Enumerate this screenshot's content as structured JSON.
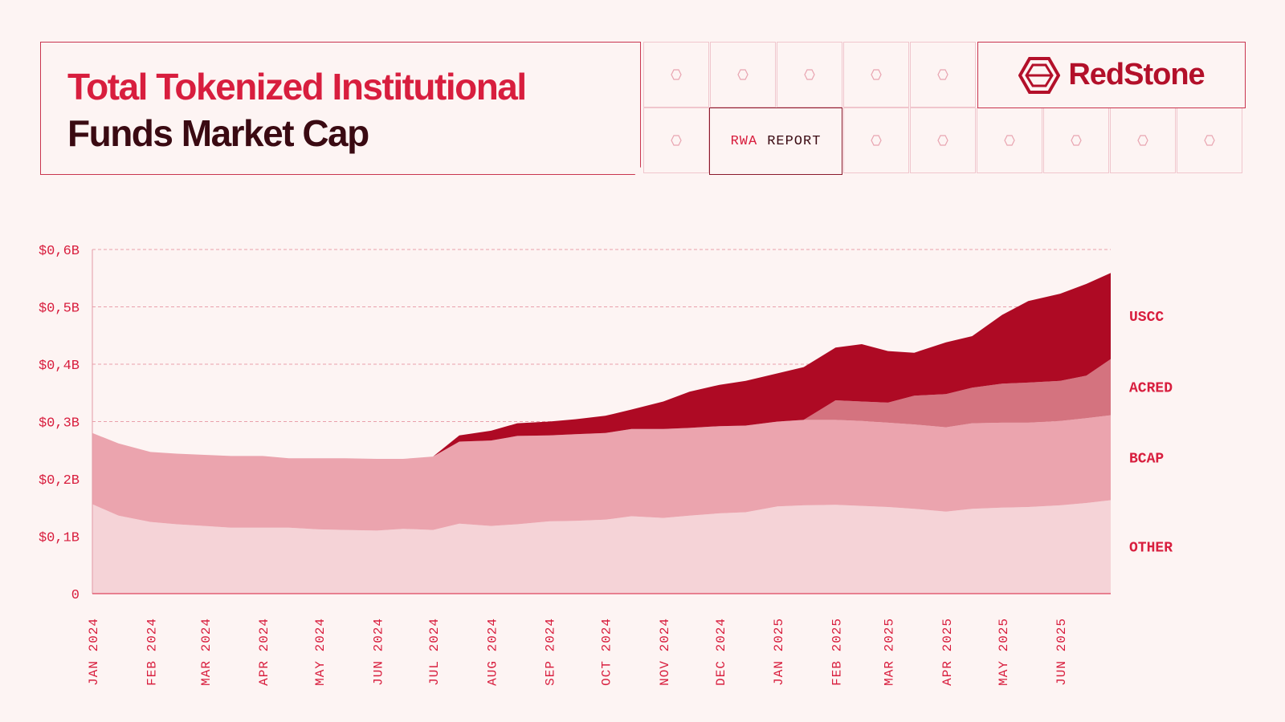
{
  "header": {
    "title_line1": "Total Tokenized Institutional",
    "title_line2": "Funds Market Cap",
    "report_tag_1": "RWA",
    "report_tag_2": "REPORT",
    "brand": "RedStone"
  },
  "colors": {
    "accent": "#d81e3e",
    "dark": "#3a0a12",
    "uscc": "#ae0a24",
    "acred": "#d4737f",
    "bcap": "#eba4ae",
    "other": "#f5d3d7",
    "background": "#fdf4f3"
  },
  "chart_data": {
    "type": "area",
    "stacked": true,
    "title": "",
    "xlabel": "",
    "ylabel": "",
    "ylim": [
      0,
      0.6
    ],
    "y_ticks": [
      "0",
      "$0,1B",
      "$0,2B",
      "$0,3B",
      "$0,4B",
      "$0,5B",
      "$0,6B"
    ],
    "x_ticks": [
      "JAN 2024",
      "FEB 2024",
      "MAR 2024",
      "APR 2024",
      "MAY 2024",
      "JUN 2024",
      "JUL 2024",
      "AUG 2024",
      "SEP 2024",
      "OCT 2024",
      "NOV 2024",
      "DEC 2024",
      "JAN 2025",
      "FEB 2025",
      "MAR 2025",
      "APR 2025",
      "MAY 2025",
      "JUN 2025"
    ],
    "x": [
      "2024-01-01",
      "2024-01-15",
      "2024-02-01",
      "2024-02-15",
      "2024-03-01",
      "2024-03-15",
      "2024-04-01",
      "2024-04-15",
      "2024-05-01",
      "2024-05-15",
      "2024-06-01",
      "2024-06-15",
      "2024-07-01",
      "2024-07-15",
      "2024-08-01",
      "2024-08-15",
      "2024-09-01",
      "2024-09-15",
      "2024-10-01",
      "2024-10-15",
      "2024-11-01",
      "2024-11-15",
      "2024-12-01",
      "2024-12-15",
      "2025-01-01",
      "2025-01-15",
      "2025-02-01",
      "2025-02-15",
      "2025-03-01",
      "2025-03-15",
      "2025-04-01",
      "2025-04-15",
      "2025-05-01",
      "2025-05-15",
      "2025-06-01",
      "2025-06-15",
      "2025-06-28"
    ],
    "series": [
      {
        "name": "OTHER",
        "color": "#f5d3d7",
        "values": [
          0.156,
          0.136,
          0.125,
          0.121,
          0.118,
          0.115,
          0.115,
          0.115,
          0.112,
          0.111,
          0.11,
          0.113,
          0.111,
          0.122,
          0.118,
          0.121,
          0.126,
          0.127,
          0.129,
          0.135,
          0.132,
          0.136,
          0.14,
          0.142,
          0.152,
          0.154,
          0.155,
          0.153,
          0.151,
          0.148,
          0.143,
          0.148,
          0.15,
          0.151,
          0.154,
          0.158,
          0.163
        ]
      },
      {
        "name": "BCAP",
        "color": "#eba4ae",
        "values": [
          0.124,
          0.126,
          0.122,
          0.123,
          0.124,
          0.125,
          0.125,
          0.121,
          0.124,
          0.125,
          0.125,
          0.122,
          0.128,
          0.143,
          0.149,
          0.154,
          0.15,
          0.151,
          0.151,
          0.152,
          0.155,
          0.153,
          0.152,
          0.151,
          0.148,
          0.149,
          0.148,
          0.148,
          0.147,
          0.147,
          0.147,
          0.149,
          0.148,
          0.147,
          0.147,
          0.148,
          0.148
        ]
      },
      {
        "name": "ACRED",
        "color": "#d4737f",
        "values": [
          0,
          0,
          0,
          0,
          0,
          0,
          0,
          0,
          0,
          0,
          0,
          0,
          0,
          0,
          0,
          0,
          0,
          0,
          0,
          0,
          0,
          0,
          0,
          0,
          0,
          0,
          0.034,
          0.034,
          0.035,
          0.05,
          0.058,
          0.062,
          0.068,
          0.07,
          0.07,
          0.074,
          0.098
        ]
      },
      {
        "name": "USCC",
        "color": "#ae0a24",
        "values": [
          0,
          0,
          0,
          0,
          0,
          0,
          0,
          0,
          0,
          0,
          0,
          0,
          0,
          0.011,
          0.017,
          0.022,
          0.024,
          0.026,
          0.03,
          0.034,
          0.048,
          0.063,
          0.072,
          0.078,
          0.084,
          0.092,
          0.092,
          0.1,
          0.09,
          0.075,
          0.09,
          0.09,
          0.12,
          0.142,
          0.152,
          0.16,
          0.15
        ]
      }
    ],
    "legend": "right",
    "grid": true
  }
}
